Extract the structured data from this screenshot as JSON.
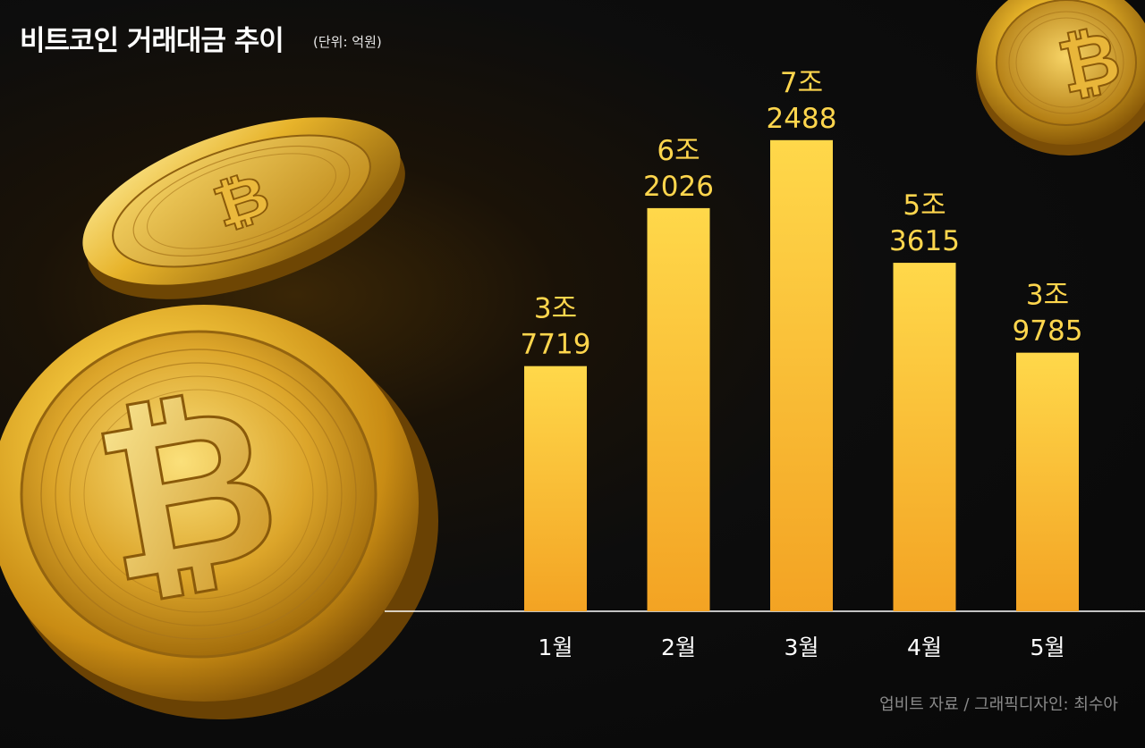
{
  "title": "비트코인 거래대금 추이",
  "unit": "(단위: 억원)",
  "source": "업비트 자료 / 그래픽디자인: 최수아",
  "colors": {
    "bar_top": "#ffd84a",
    "bar_bottom": "#f3a323",
    "label": "#ffd64d",
    "tick": "#ffffff",
    "axis": "#ffffff",
    "background": "#0b0b0b"
  },
  "decoration": {
    "coin_icon": "bitcoin-coin-icon",
    "coin_symbol": "₿"
  },
  "chart_data": {
    "type": "bar",
    "title": "비트코인 거래대금 추이",
    "unit": "(단위: 억원)",
    "categories": [
      "1월",
      "2월",
      "3월",
      "4월",
      "5월"
    ],
    "values": [
      37719,
      62026,
      72488,
      53615,
      39785
    ],
    "labels": [
      [
        "3조",
        "7719"
      ],
      [
        "6조",
        "2026"
      ],
      [
        "7조",
        "2488"
      ],
      [
        "5조",
        "3615"
      ],
      [
        "3조",
        "9785"
      ]
    ],
    "ylim": [
      0,
      77000
    ],
    "grid": false,
    "legend": "none"
  }
}
